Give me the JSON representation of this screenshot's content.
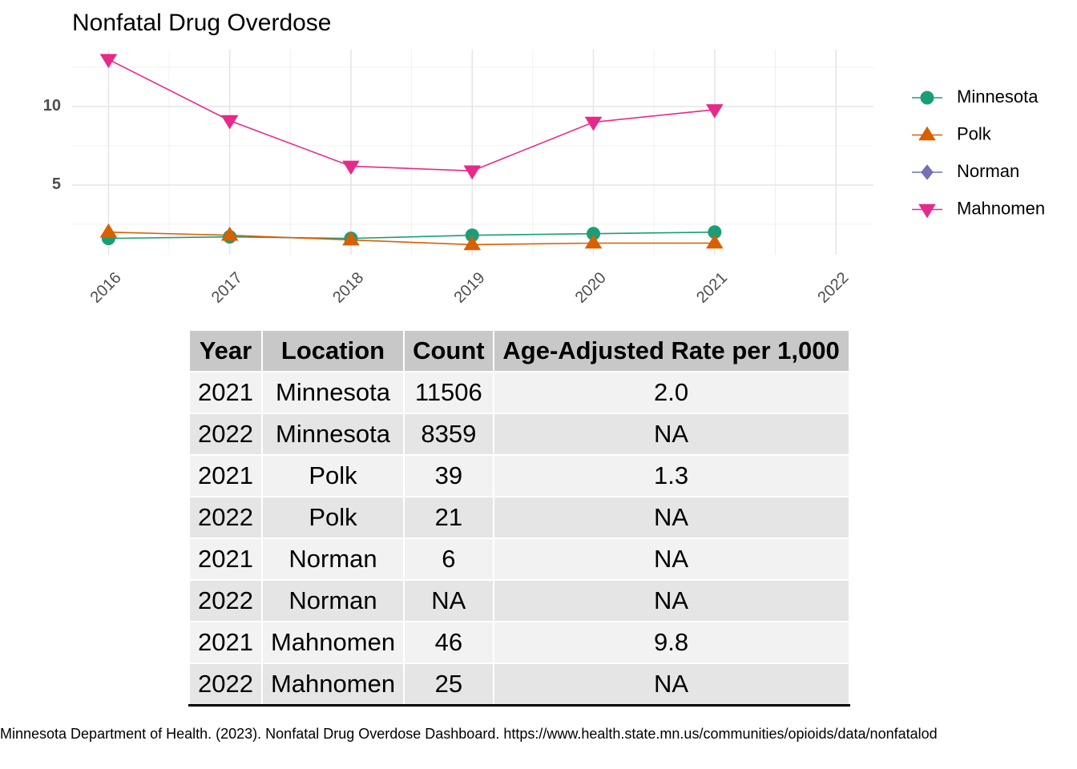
{
  "chart_data": {
    "type": "line",
    "title": "Nonfatal Drug Overdose",
    "x": [
      2016,
      2017,
      2018,
      2019,
      2020,
      2021
    ],
    "series": [
      {
        "name": "Minnesota",
        "color": "#1b9e77",
        "marker": "circle",
        "values": [
          1.6,
          1.7,
          1.6,
          1.8,
          1.9,
          2.0
        ]
      },
      {
        "name": "Polk",
        "color": "#d95f02",
        "marker": "triangle-up",
        "values": [
          2.0,
          1.8,
          1.5,
          1.2,
          1.3,
          1.3
        ]
      },
      {
        "name": "Norman",
        "color": "#7570b3",
        "marker": "diamond",
        "values": [
          null,
          null,
          null,
          null,
          null,
          null
        ]
      },
      {
        "name": "Mahnomen",
        "color": "#e7298a",
        "marker": "triangle-down",
        "values": [
          13.0,
          9.1,
          6.2,
          5.9,
          9.0,
          9.8
        ]
      }
    ],
    "xlim": [
      2015.7,
      2022.31
    ],
    "xticks": [
      2016,
      2017,
      2018,
      2019,
      2020,
      2021,
      2022
    ],
    "xticks_minor": [
      2016.5,
      2017.5,
      2018.5,
      2019.5,
      2020.5,
      2021.5
    ],
    "ylim": [
      0.56,
      13.62
    ],
    "yticks": [
      5,
      10
    ],
    "yticks_minor": [
      2.5,
      7.5,
      12.5
    ],
    "grid": true,
    "legend": "right"
  },
  "table": {
    "columns": [
      "Year",
      "Location",
      "Count",
      "Age-Adjusted Rate per 1,000"
    ],
    "rows": [
      [
        2021,
        "Minnesota",
        11506,
        "2.0"
      ],
      [
        2022,
        "Minnesota",
        8359,
        "NA"
      ],
      [
        2021,
        "Polk",
        39,
        "1.3"
      ],
      [
        2022,
        "Polk",
        21,
        "NA"
      ],
      [
        2021,
        "Norman",
        6,
        "NA"
      ],
      [
        2022,
        "Norman",
        "NA",
        "NA"
      ],
      [
        2021,
        "Mahnomen",
        46,
        "9.8"
      ],
      [
        2022,
        "Mahnomen",
        25,
        "NA"
      ]
    ]
  },
  "caption": "Minnesota Department of Health. (2023). Nonfatal Drug Overdose Dashboard. https://www.health.state.mn.us/communities/opioids/data/nonfatalod"
}
